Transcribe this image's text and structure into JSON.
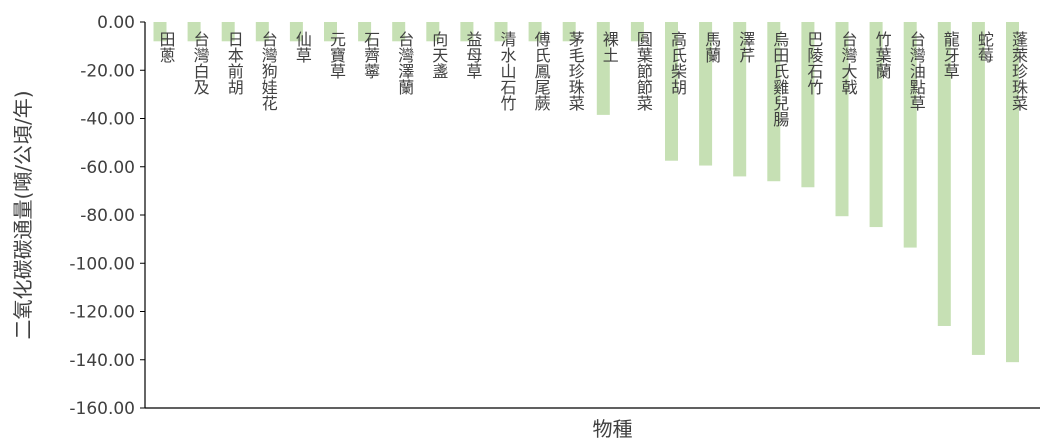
{
  "chart_data": {
    "type": "bar",
    "xlabel": "物種",
    "ylabel": "二氧化碳碳通量(噸/公頃/年)",
    "ylim": [
      -160,
      0
    ],
    "y_ticks": [
      "0.00",
      "-20.00",
      "-40.00",
      "-60.00",
      "-80.00",
      "-100.00",
      "-120.00",
      "-140.00",
      "-160.00"
    ],
    "grid": false,
    "legend": "none",
    "bar_color": "#c6e0b4",
    "categories": [
      "田蔥",
      "台灣白及",
      "日本前胡",
      "台灣狗娃花",
      "仙草",
      "元寶草",
      "石薺薴",
      "台灣澤蘭",
      "向天盞",
      "益母草",
      "清水山石竹",
      "傅氏鳳尾蕨",
      "茅毛珍珠菜",
      "裸土",
      "圓葉節節菜",
      "高氏柴胡",
      "馬蘭",
      "澤芹",
      "烏田氏雞兒腸",
      "巴陵石竹",
      "台灣大戟",
      "竹葉蘭",
      "台灣油點草",
      "龍牙草",
      "蛇莓",
      "蓬萊珍珠菜"
    ],
    "values": [
      -8,
      -8,
      -8,
      -8,
      -8,
      -8,
      -8,
      -8,
      -8,
      -8,
      -8,
      -8,
      -8,
      -38.5,
      -8,
      -57.5,
      -59.5,
      -64,
      -66,
      -68.5,
      -80.5,
      -85,
      -93.5,
      -126,
      -138,
      -141
    ]
  }
}
